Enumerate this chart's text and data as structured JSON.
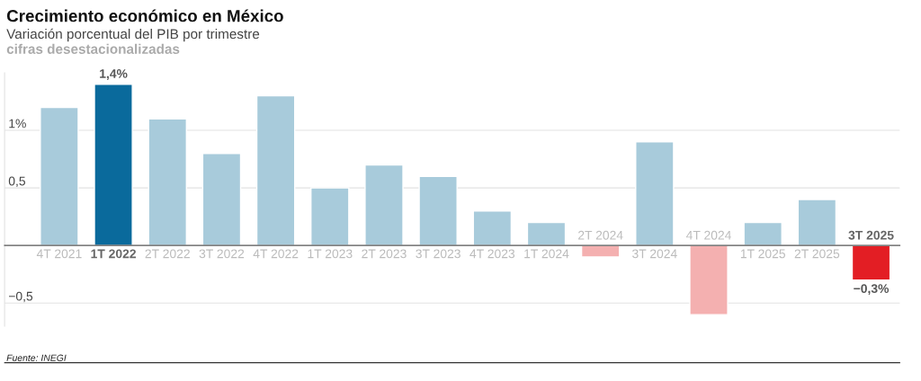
{
  "chart_data": {
    "type": "bar",
    "title": "Crecimiento económico en México",
    "subtitle": "Variación porcentual del PIB por trimestre",
    "annotations": [
      "cifras desestacionalizadas",
      "Fuente: INEGI"
    ],
    "categories": [
      "4T 2021",
      "1T 2022",
      "2T 2022",
      "3T 2022",
      "4T 2022",
      "1T 2023",
      "2T 2023",
      "3T 2023",
      "4T 2023",
      "1T 2024",
      "2T 2024",
      "3T 2024",
      "4T 2024",
      "1T 2025",
      "2T 2025",
      "3T 2025"
    ],
    "values": [
      1.2,
      1.4,
      1.1,
      0.8,
      1.3,
      0.5,
      0.7,
      0.6,
      0.3,
      0.2,
      -0.1,
      0.9,
      -0.6,
      0.2,
      0.4,
      -0.3
    ],
    "colors": [
      "#a8cbdb",
      "#0a6a9c",
      "#a8cbdb",
      "#a8cbdb",
      "#a8cbdb",
      "#a8cbdb",
      "#a8cbdb",
      "#a8cbdb",
      "#a8cbdb",
      "#a8cbdb",
      "#f4b0b0",
      "#a8cbdb",
      "#f4b0b0",
      "#a8cbdb",
      "#a8cbdb",
      "#e31e24"
    ],
    "value_labels": [
      null,
      "1,4%",
      null,
      null,
      null,
      null,
      null,
      null,
      null,
      null,
      null,
      null,
      null,
      null,
      null,
      "−0,3%"
    ],
    "ylim": [
      -0.7,
      1.5
    ],
    "yticks": [
      {
        "value": -0.5,
        "label": "−0,5"
      },
      {
        "value": 0.5,
        "label": "0,5"
      },
      {
        "value": 1,
        "label": "1%"
      }
    ],
    "grid": "y"
  }
}
